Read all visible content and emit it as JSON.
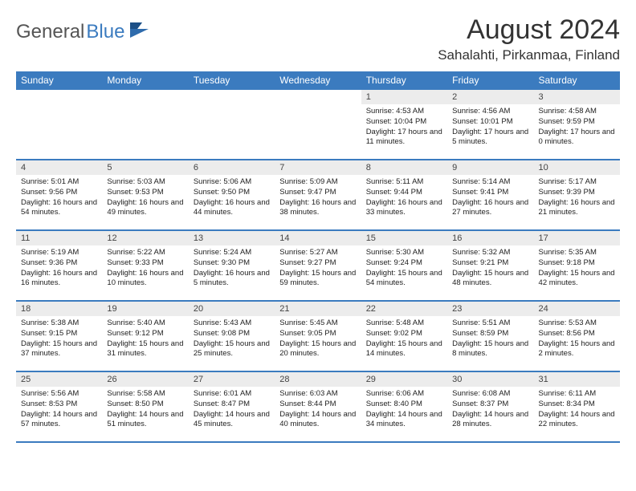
{
  "logo": {
    "text1": "General",
    "text2": "Blue"
  },
  "title": "August 2024",
  "location": "Sahalahti, Pirkanmaa, Finland",
  "colors": {
    "header_bg": "#3b7bbf",
    "header_text": "#ffffff",
    "daynum_bg": "#ececec",
    "page_bg": "#ffffff",
    "text": "#222222",
    "logo_gray": "#555555",
    "logo_blue": "#3b7bbf"
  },
  "day_headers": [
    "Sunday",
    "Monday",
    "Tuesday",
    "Wednesday",
    "Thursday",
    "Friday",
    "Saturday"
  ],
  "weeks": [
    [
      {
        "empty": true
      },
      {
        "empty": true
      },
      {
        "empty": true
      },
      {
        "empty": true
      },
      {
        "day": "1",
        "sunrise": "Sunrise: 4:53 AM",
        "sunset": "Sunset: 10:04 PM",
        "daylight": "Daylight: 17 hours and 11 minutes."
      },
      {
        "day": "2",
        "sunrise": "Sunrise: 4:56 AM",
        "sunset": "Sunset: 10:01 PM",
        "daylight": "Daylight: 17 hours and 5 minutes."
      },
      {
        "day": "3",
        "sunrise": "Sunrise: 4:58 AM",
        "sunset": "Sunset: 9:59 PM",
        "daylight": "Daylight: 17 hours and 0 minutes."
      }
    ],
    [
      {
        "day": "4",
        "sunrise": "Sunrise: 5:01 AM",
        "sunset": "Sunset: 9:56 PM",
        "daylight": "Daylight: 16 hours and 54 minutes."
      },
      {
        "day": "5",
        "sunrise": "Sunrise: 5:03 AM",
        "sunset": "Sunset: 9:53 PM",
        "daylight": "Daylight: 16 hours and 49 minutes."
      },
      {
        "day": "6",
        "sunrise": "Sunrise: 5:06 AM",
        "sunset": "Sunset: 9:50 PM",
        "daylight": "Daylight: 16 hours and 44 minutes."
      },
      {
        "day": "7",
        "sunrise": "Sunrise: 5:09 AM",
        "sunset": "Sunset: 9:47 PM",
        "daylight": "Daylight: 16 hours and 38 minutes."
      },
      {
        "day": "8",
        "sunrise": "Sunrise: 5:11 AM",
        "sunset": "Sunset: 9:44 PM",
        "daylight": "Daylight: 16 hours and 33 minutes."
      },
      {
        "day": "9",
        "sunrise": "Sunrise: 5:14 AM",
        "sunset": "Sunset: 9:41 PM",
        "daylight": "Daylight: 16 hours and 27 minutes."
      },
      {
        "day": "10",
        "sunrise": "Sunrise: 5:17 AM",
        "sunset": "Sunset: 9:39 PM",
        "daylight": "Daylight: 16 hours and 21 minutes."
      }
    ],
    [
      {
        "day": "11",
        "sunrise": "Sunrise: 5:19 AM",
        "sunset": "Sunset: 9:36 PM",
        "daylight": "Daylight: 16 hours and 16 minutes."
      },
      {
        "day": "12",
        "sunrise": "Sunrise: 5:22 AM",
        "sunset": "Sunset: 9:33 PM",
        "daylight": "Daylight: 16 hours and 10 minutes."
      },
      {
        "day": "13",
        "sunrise": "Sunrise: 5:24 AM",
        "sunset": "Sunset: 9:30 PM",
        "daylight": "Daylight: 16 hours and 5 minutes."
      },
      {
        "day": "14",
        "sunrise": "Sunrise: 5:27 AM",
        "sunset": "Sunset: 9:27 PM",
        "daylight": "Daylight: 15 hours and 59 minutes."
      },
      {
        "day": "15",
        "sunrise": "Sunrise: 5:30 AM",
        "sunset": "Sunset: 9:24 PM",
        "daylight": "Daylight: 15 hours and 54 minutes."
      },
      {
        "day": "16",
        "sunrise": "Sunrise: 5:32 AM",
        "sunset": "Sunset: 9:21 PM",
        "daylight": "Daylight: 15 hours and 48 minutes."
      },
      {
        "day": "17",
        "sunrise": "Sunrise: 5:35 AM",
        "sunset": "Sunset: 9:18 PM",
        "daylight": "Daylight: 15 hours and 42 minutes."
      }
    ],
    [
      {
        "day": "18",
        "sunrise": "Sunrise: 5:38 AM",
        "sunset": "Sunset: 9:15 PM",
        "daylight": "Daylight: 15 hours and 37 minutes."
      },
      {
        "day": "19",
        "sunrise": "Sunrise: 5:40 AM",
        "sunset": "Sunset: 9:12 PM",
        "daylight": "Daylight: 15 hours and 31 minutes."
      },
      {
        "day": "20",
        "sunrise": "Sunrise: 5:43 AM",
        "sunset": "Sunset: 9:08 PM",
        "daylight": "Daylight: 15 hours and 25 minutes."
      },
      {
        "day": "21",
        "sunrise": "Sunrise: 5:45 AM",
        "sunset": "Sunset: 9:05 PM",
        "daylight": "Daylight: 15 hours and 20 minutes."
      },
      {
        "day": "22",
        "sunrise": "Sunrise: 5:48 AM",
        "sunset": "Sunset: 9:02 PM",
        "daylight": "Daylight: 15 hours and 14 minutes."
      },
      {
        "day": "23",
        "sunrise": "Sunrise: 5:51 AM",
        "sunset": "Sunset: 8:59 PM",
        "daylight": "Daylight: 15 hours and 8 minutes."
      },
      {
        "day": "24",
        "sunrise": "Sunrise: 5:53 AM",
        "sunset": "Sunset: 8:56 PM",
        "daylight": "Daylight: 15 hours and 2 minutes."
      }
    ],
    [
      {
        "day": "25",
        "sunrise": "Sunrise: 5:56 AM",
        "sunset": "Sunset: 8:53 PM",
        "daylight": "Daylight: 14 hours and 57 minutes."
      },
      {
        "day": "26",
        "sunrise": "Sunrise: 5:58 AM",
        "sunset": "Sunset: 8:50 PM",
        "daylight": "Daylight: 14 hours and 51 minutes."
      },
      {
        "day": "27",
        "sunrise": "Sunrise: 6:01 AM",
        "sunset": "Sunset: 8:47 PM",
        "daylight": "Daylight: 14 hours and 45 minutes."
      },
      {
        "day": "28",
        "sunrise": "Sunrise: 6:03 AM",
        "sunset": "Sunset: 8:44 PM",
        "daylight": "Daylight: 14 hours and 40 minutes."
      },
      {
        "day": "29",
        "sunrise": "Sunrise: 6:06 AM",
        "sunset": "Sunset: 8:40 PM",
        "daylight": "Daylight: 14 hours and 34 minutes."
      },
      {
        "day": "30",
        "sunrise": "Sunrise: 6:08 AM",
        "sunset": "Sunset: 8:37 PM",
        "daylight": "Daylight: 14 hours and 28 minutes."
      },
      {
        "day": "31",
        "sunrise": "Sunrise: 6:11 AM",
        "sunset": "Sunset: 8:34 PM",
        "daylight": "Daylight: 14 hours and 22 minutes."
      }
    ]
  ]
}
